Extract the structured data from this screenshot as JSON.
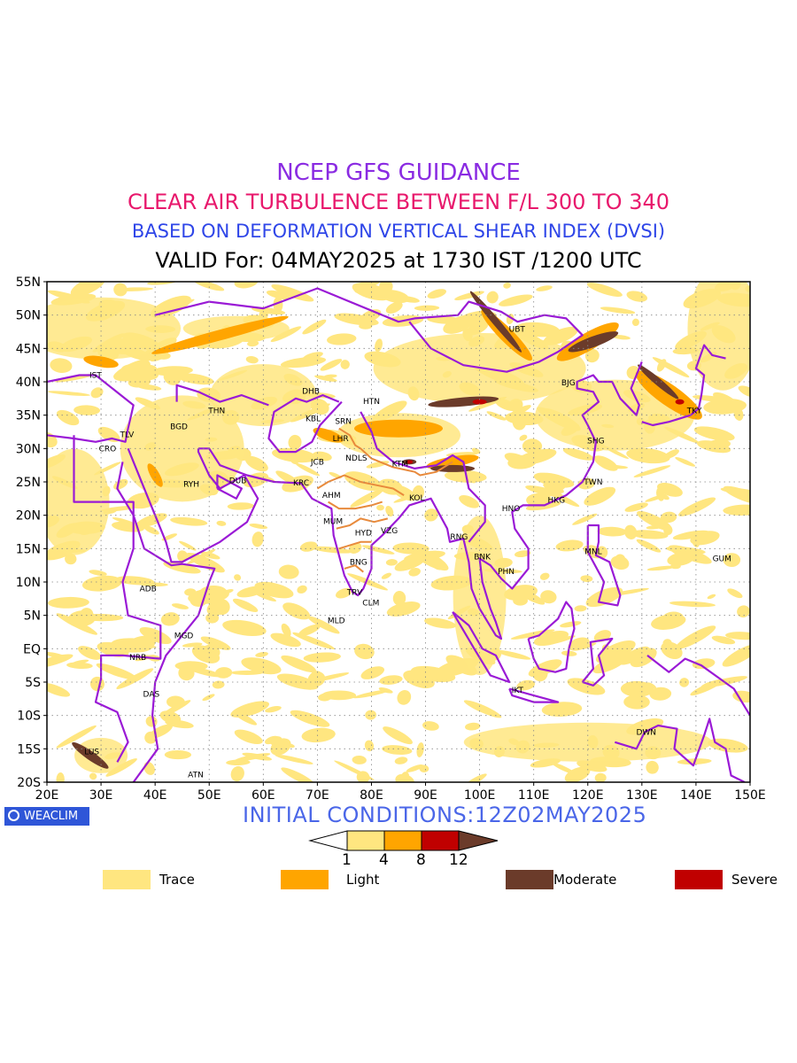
{
  "titles": {
    "line1": "NCEP GFS GUIDANCE",
    "line2": "CLEAR AIR TURBULENCE BETWEEN F/L 300 TO 340",
    "line3": "BASED ON DEFORMATION VERTICAL SHEAR INDEX (DVSI)",
    "line4": "VALID For: 04MAY2025 at 1730 IST /1200 UTC"
  },
  "colors": {
    "line1": "#8a2be2",
    "line2": "#e8186c",
    "line3": "#2f46e8",
    "border": "#9a1ad6",
    "india_border": "#e88a3c",
    "trace": "#ffe680",
    "light": "#ffa500",
    "moderate": "#6b3b2a",
    "severe": "#c00000",
    "init": "#4a66e8"
  },
  "axes": {
    "lat_labels": [
      "55N",
      "50N",
      "45N",
      "40N",
      "35N",
      "30N",
      "25N",
      "20N",
      "15N",
      "10N",
      "5N",
      "EQ",
      "5S",
      "10S",
      "15S",
      "20S"
    ],
    "lon_labels": [
      "20E",
      "30E",
      "40E",
      "50E",
      "60E",
      "70E",
      "80E",
      "90E",
      "100E",
      "110E",
      "120E",
      "130E",
      "140E",
      "150E"
    ]
  },
  "stations": [
    {
      "code": "UBT",
      "lon": 106.9,
      "lat": 47.9
    },
    {
      "code": "BJG",
      "lon": 116.4,
      "lat": 39.9
    },
    {
      "code": "TKY",
      "lon": 139.7,
      "lat": 35.7
    },
    {
      "code": "SHG",
      "lon": 121.5,
      "lat": 31.2
    },
    {
      "code": "TWN",
      "lon": 121.0,
      "lat": 25.0
    },
    {
      "code": "HKG",
      "lon": 114.2,
      "lat": 22.3
    },
    {
      "code": "HNO",
      "lon": 105.8,
      "lat": 21.0
    },
    {
      "code": "RNG",
      "lon": 96.2,
      "lat": 16.8
    },
    {
      "code": "BNK",
      "lon": 100.5,
      "lat": 13.8
    },
    {
      "code": "PHN",
      "lon": 104.9,
      "lat": 11.6
    },
    {
      "code": "MNL",
      "lon": 121.0,
      "lat": 14.6
    },
    {
      "code": "GUM",
      "lon": 144.8,
      "lat": 13.5
    },
    {
      "code": "IKT",
      "lon": 107.0,
      "lat": -6.2
    },
    {
      "code": "DWN",
      "lon": 130.8,
      "lat": -12.5
    },
    {
      "code": "HTN",
      "lon": 80.0,
      "lat": 37.1
    },
    {
      "code": "DHB",
      "lon": 68.8,
      "lat": 38.6
    },
    {
      "code": "KBL",
      "lon": 69.2,
      "lat": 34.5
    },
    {
      "code": "SRN",
      "lon": 74.8,
      "lat": 34.1
    },
    {
      "code": "LHR",
      "lon": 74.3,
      "lat": 31.5
    },
    {
      "code": "JCB",
      "lon": 70.0,
      "lat": 28.0
    },
    {
      "code": "NDLS",
      "lon": 77.2,
      "lat": 28.6
    },
    {
      "code": "KTM",
      "lon": 85.3,
      "lat": 27.7
    },
    {
      "code": "KRC",
      "lon": 67.0,
      "lat": 24.9
    },
    {
      "code": "AHM",
      "lon": 72.6,
      "lat": 23.0
    },
    {
      "code": "KOL",
      "lon": 88.4,
      "lat": 22.6
    },
    {
      "code": "MUM",
      "lon": 72.9,
      "lat": 19.1
    },
    {
      "code": "HYD",
      "lon": 78.5,
      "lat": 17.4
    },
    {
      "code": "VZG",
      "lon": 83.3,
      "lat": 17.7
    },
    {
      "code": "BNG",
      "lon": 77.6,
      "lat": 13.0
    },
    {
      "code": "TRV",
      "lon": 76.9,
      "lat": 8.5
    },
    {
      "code": "CLM",
      "lon": 79.9,
      "lat": 6.9
    },
    {
      "code": "MLD",
      "lon": 73.5,
      "lat": 4.2
    },
    {
      "code": "IST",
      "lon": 29.0,
      "lat": 41.0
    },
    {
      "code": "TLV",
      "lon": 34.8,
      "lat": 32.1
    },
    {
      "code": "CRO",
      "lon": 31.2,
      "lat": 30.0
    },
    {
      "code": "BGD",
      "lon": 44.4,
      "lat": 33.3
    },
    {
      "code": "THN",
      "lon": 51.4,
      "lat": 35.7
    },
    {
      "code": "RYH",
      "lon": 46.7,
      "lat": 24.7
    },
    {
      "code": "DUB",
      "lon": 55.3,
      "lat": 25.2
    },
    {
      "code": "ADB",
      "lon": 38.7,
      "lat": 9.0
    },
    {
      "code": "MGD",
      "lon": 45.3,
      "lat": 2.0
    },
    {
      "code": "NRB",
      "lon": 36.8,
      "lat": -1.3
    },
    {
      "code": "DAS",
      "lon": 39.3,
      "lat": -6.8
    },
    {
      "code": "LUS",
      "lon": 28.3,
      "lat": -15.4
    },
    {
      "code": "ATN",
      "lon": 47.5,
      "lat": -18.9
    }
  ],
  "footer": {
    "init": "INITIAL CONDITIONS:12Z02MAY2025",
    "logo": "WEACLIM"
  },
  "scale": {
    "ticks": [
      "1",
      "4",
      "8",
      "12"
    ]
  },
  "legend": [
    {
      "label": "Trace",
      "color": "#ffe680"
    },
    {
      "label": "Light",
      "color": "#ffa500"
    },
    {
      "label": "Moderate",
      "color": "#6b3b2a"
    },
    {
      "label": "Severe",
      "color": "#c00000"
    }
  ]
}
